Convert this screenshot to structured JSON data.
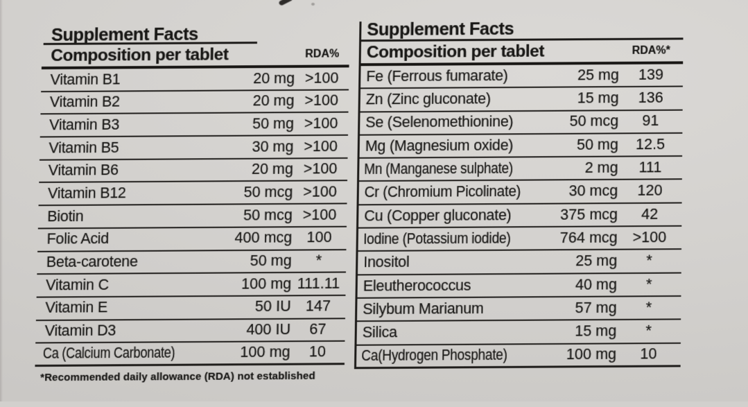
{
  "footnote": "*Recommended daily allowance (RDA) not established",
  "left_table": {
    "title": "Supplement Facts",
    "composition_header": "Composition per tablet",
    "rda_header": "RDA%",
    "rows": [
      {
        "name": "Vitamin B1",
        "amount": "20 mg",
        "rda": ">100"
      },
      {
        "name": "Vitamin B2",
        "amount": "20 mg",
        "rda": ">100"
      },
      {
        "name": "Vitamin B3",
        "amount": "50 mg",
        "rda": ">100"
      },
      {
        "name": "Vitamin B5",
        "amount": "30 mg",
        "rda": ">100"
      },
      {
        "name": "Vitamin B6",
        "amount": "20 mg",
        "rda": ">100"
      },
      {
        "name": "Vitamin B12",
        "amount": "50 mcg",
        "rda": ">100"
      },
      {
        "name": "Biotin",
        "amount": "50 mcg",
        "rda": ">100"
      },
      {
        "name": "Folic Acid",
        "amount": "400 mcg",
        "rda": "100"
      },
      {
        "name": "Beta-carotene",
        "amount": "50 mg",
        "rda": "*"
      },
      {
        "name": "Vitamin C",
        "amount": "100 mg",
        "rda": "111.11"
      },
      {
        "name": "Vitamin E",
        "amount": "50 IU",
        "rda": "147"
      },
      {
        "name": "Vitamin D3",
        "amount": "400 IU",
        "rda": "67"
      },
      {
        "name": "Ca (Calcium Carbonate)",
        "amount": "100 mg",
        "rda": "10"
      }
    ]
  },
  "right_table": {
    "title": "Supplement Facts",
    "composition_header": "Composition per tablet",
    "rda_header": "RDA%*",
    "rows": [
      {
        "name": "Fe (Ferrous fumarate)",
        "amount": "25 mg",
        "rda": "139"
      },
      {
        "name": "Zn (Zinc gluconate)",
        "amount": "15 mg",
        "rda": "136"
      },
      {
        "name": "Se (Selenomethionine)",
        "amount": "50 mcg",
        "rda": "91"
      },
      {
        "name": "Mg (Magnesium oxide)",
        "amount": "50 mg",
        "rda": "12.5"
      },
      {
        "name": "Mn (Manganese sulphate)",
        "amount": "2 mg",
        "rda": "111"
      },
      {
        "name": "Cr (Chromium Picolinate)",
        "amount": "30 mcg",
        "rda": "120"
      },
      {
        "name": "Cu (Copper gluconate)",
        "amount": "375 mcg",
        "rda": "42"
      },
      {
        "name": "Iodine (Potassium iodide)",
        "amount": "764 mcg",
        "rda": ">100"
      },
      {
        "name": "Inositol",
        "amount": "25 mg",
        "rda": "*"
      },
      {
        "name": "Eleutherococcus",
        "amount": "40 mg",
        "rda": "*"
      },
      {
        "name": "Silybum Marianum",
        "amount": "57 mg",
        "rda": "*"
      },
      {
        "name": "Silica",
        "amount": "15 mg",
        "rda": "*"
      },
      {
        "name": "Ca(Hydrogen Phosphate)",
        "amount": "100 mg",
        "rda": "10"
      }
    ]
  },
  "colors": {
    "background": "#d2d0cd",
    "ink": "#1a1a1a",
    "package_edge_pink": "#d44966"
  }
}
